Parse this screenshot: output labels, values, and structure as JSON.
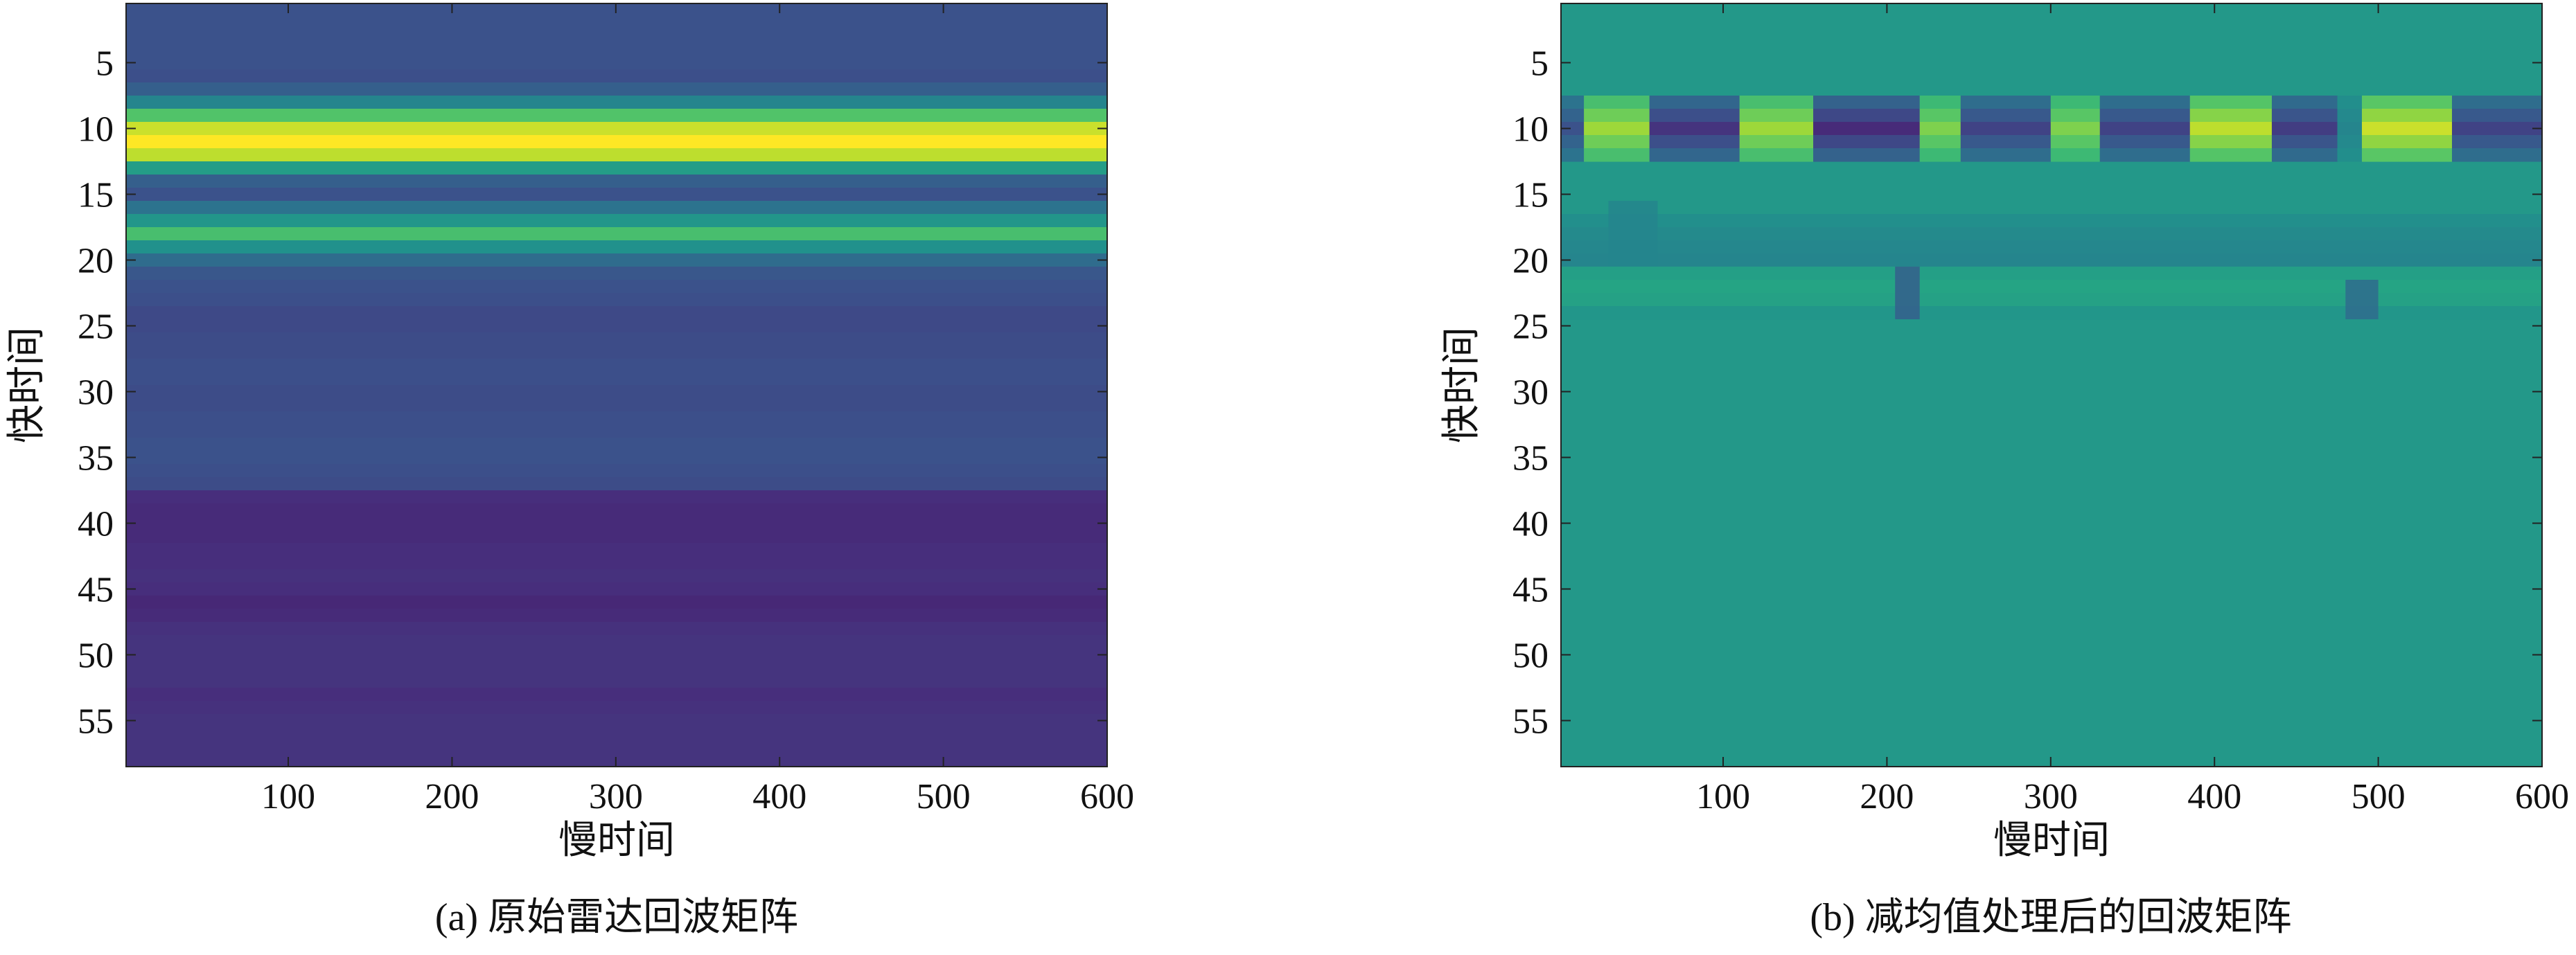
{
  "colormap": [
    "#440154",
    "#472d7b",
    "#3b528b",
    "#2c728e",
    "#21918c",
    "#28ae80",
    "#5ec962",
    "#addc30",
    "#fde725"
  ],
  "chart_data": [
    {
      "type": "heatmap",
      "panel": "a",
      "caption": "(a) 原始雷达回波矩阵",
      "xlabel": "慢时间",
      "ylabel": "快时间",
      "xticks": [
        100,
        200,
        300,
        400,
        500,
        600
      ],
      "yticks": [
        5,
        10,
        15,
        20,
        25,
        30,
        35,
        40,
        45,
        50,
        55
      ],
      "xlim": [
        1,
        600
      ],
      "ylim": [
        1,
        58
      ],
      "y_reversed": true,
      "colorscale": [
        0,
        1
      ],
      "row_profile": [
        [
          1,
          0.25
        ],
        [
          2,
          0.25
        ],
        [
          3,
          0.25
        ],
        [
          4,
          0.25
        ],
        [
          5,
          0.25
        ],
        [
          6,
          0.24
        ],
        [
          7,
          0.3
        ],
        [
          8,
          0.45
        ],
        [
          9,
          0.72
        ],
        [
          10,
          0.92
        ],
        [
          11,
          1.0
        ],
        [
          12,
          0.9
        ],
        [
          13,
          0.55
        ],
        [
          14,
          0.3
        ],
        [
          15,
          0.25
        ],
        [
          16,
          0.38
        ],
        [
          17,
          0.52
        ],
        [
          18,
          0.7
        ],
        [
          19,
          0.5
        ],
        [
          20,
          0.35
        ],
        [
          21,
          0.27
        ],
        [
          22,
          0.25
        ],
        [
          23,
          0.24
        ],
        [
          24,
          0.22
        ],
        [
          25,
          0.22
        ],
        [
          26,
          0.23
        ],
        [
          27,
          0.23
        ],
        [
          28,
          0.24
        ],
        [
          29,
          0.24
        ],
        [
          30,
          0.23
        ],
        [
          31,
          0.23
        ],
        [
          32,
          0.24
        ],
        [
          33,
          0.24
        ],
        [
          34,
          0.25
        ],
        [
          35,
          0.25
        ],
        [
          36,
          0.24
        ],
        [
          37,
          0.23
        ],
        [
          38,
          0.13
        ],
        [
          39,
          0.12
        ],
        [
          40,
          0.12
        ],
        [
          41,
          0.12
        ],
        [
          42,
          0.13
        ],
        [
          43,
          0.13
        ],
        [
          44,
          0.14
        ],
        [
          45,
          0.13
        ],
        [
          46,
          0.11
        ],
        [
          47,
          0.12
        ],
        [
          48,
          0.14
        ],
        [
          49,
          0.15
        ],
        [
          50,
          0.15
        ],
        [
          51,
          0.15
        ],
        [
          52,
          0.15
        ],
        [
          53,
          0.13
        ],
        [
          54,
          0.14
        ],
        [
          55,
          0.15
        ],
        [
          56,
          0.15
        ],
        [
          57,
          0.15
        ],
        [
          58,
          0.15
        ]
      ],
      "features": []
    },
    {
      "type": "heatmap",
      "panel": "b",
      "caption": "(b) 减均值处理后的回波矩阵",
      "xlabel": "慢时间",
      "ylabel": "快时间",
      "xticks": [
        100,
        200,
        300,
        400,
        500,
        600
      ],
      "yticks": [
        5,
        10,
        15,
        20,
        25,
        30,
        35,
        40,
        45,
        50,
        55
      ],
      "xlim": [
        1,
        600
      ],
      "ylim": [
        1,
        58
      ],
      "y_reversed": true,
      "colorscale": [
        0,
        1
      ],
      "background_value": 0.53,
      "band": {
        "rows": [
          8,
          12
        ],
        "segments": [
          [
            1,
            15,
            0.25
          ],
          [
            15,
            55,
            0.85
          ],
          [
            55,
            110,
            0.15
          ],
          [
            110,
            155,
            0.85
          ],
          [
            155,
            220,
            0.12
          ],
          [
            220,
            245,
            0.8
          ],
          [
            245,
            300,
            0.2
          ],
          [
            300,
            330,
            0.8
          ],
          [
            330,
            385,
            0.2
          ],
          [
            385,
            435,
            0.9
          ],
          [
            435,
            475,
            0.18
          ],
          [
            475,
            490,
            0.45
          ],
          [
            490,
            545,
            0.92
          ],
          [
            545,
            600,
            0.2
          ]
        ]
      },
      "row_adjust": [
        [
          17,
          0.49
        ],
        [
          18,
          0.47
        ],
        [
          19,
          0.46
        ],
        [
          20,
          0.45
        ],
        [
          21,
          0.56
        ],
        [
          22,
          0.58
        ],
        [
          23,
          0.57
        ],
        [
          24,
          0.52
        ]
      ],
      "features": [
        [
          205,
          220,
          21,
          24,
          0.3
        ],
        [
          480,
          500,
          22,
          24,
          0.35
        ],
        [
          30,
          60,
          16,
          20,
          0.45
        ]
      ]
    }
  ]
}
